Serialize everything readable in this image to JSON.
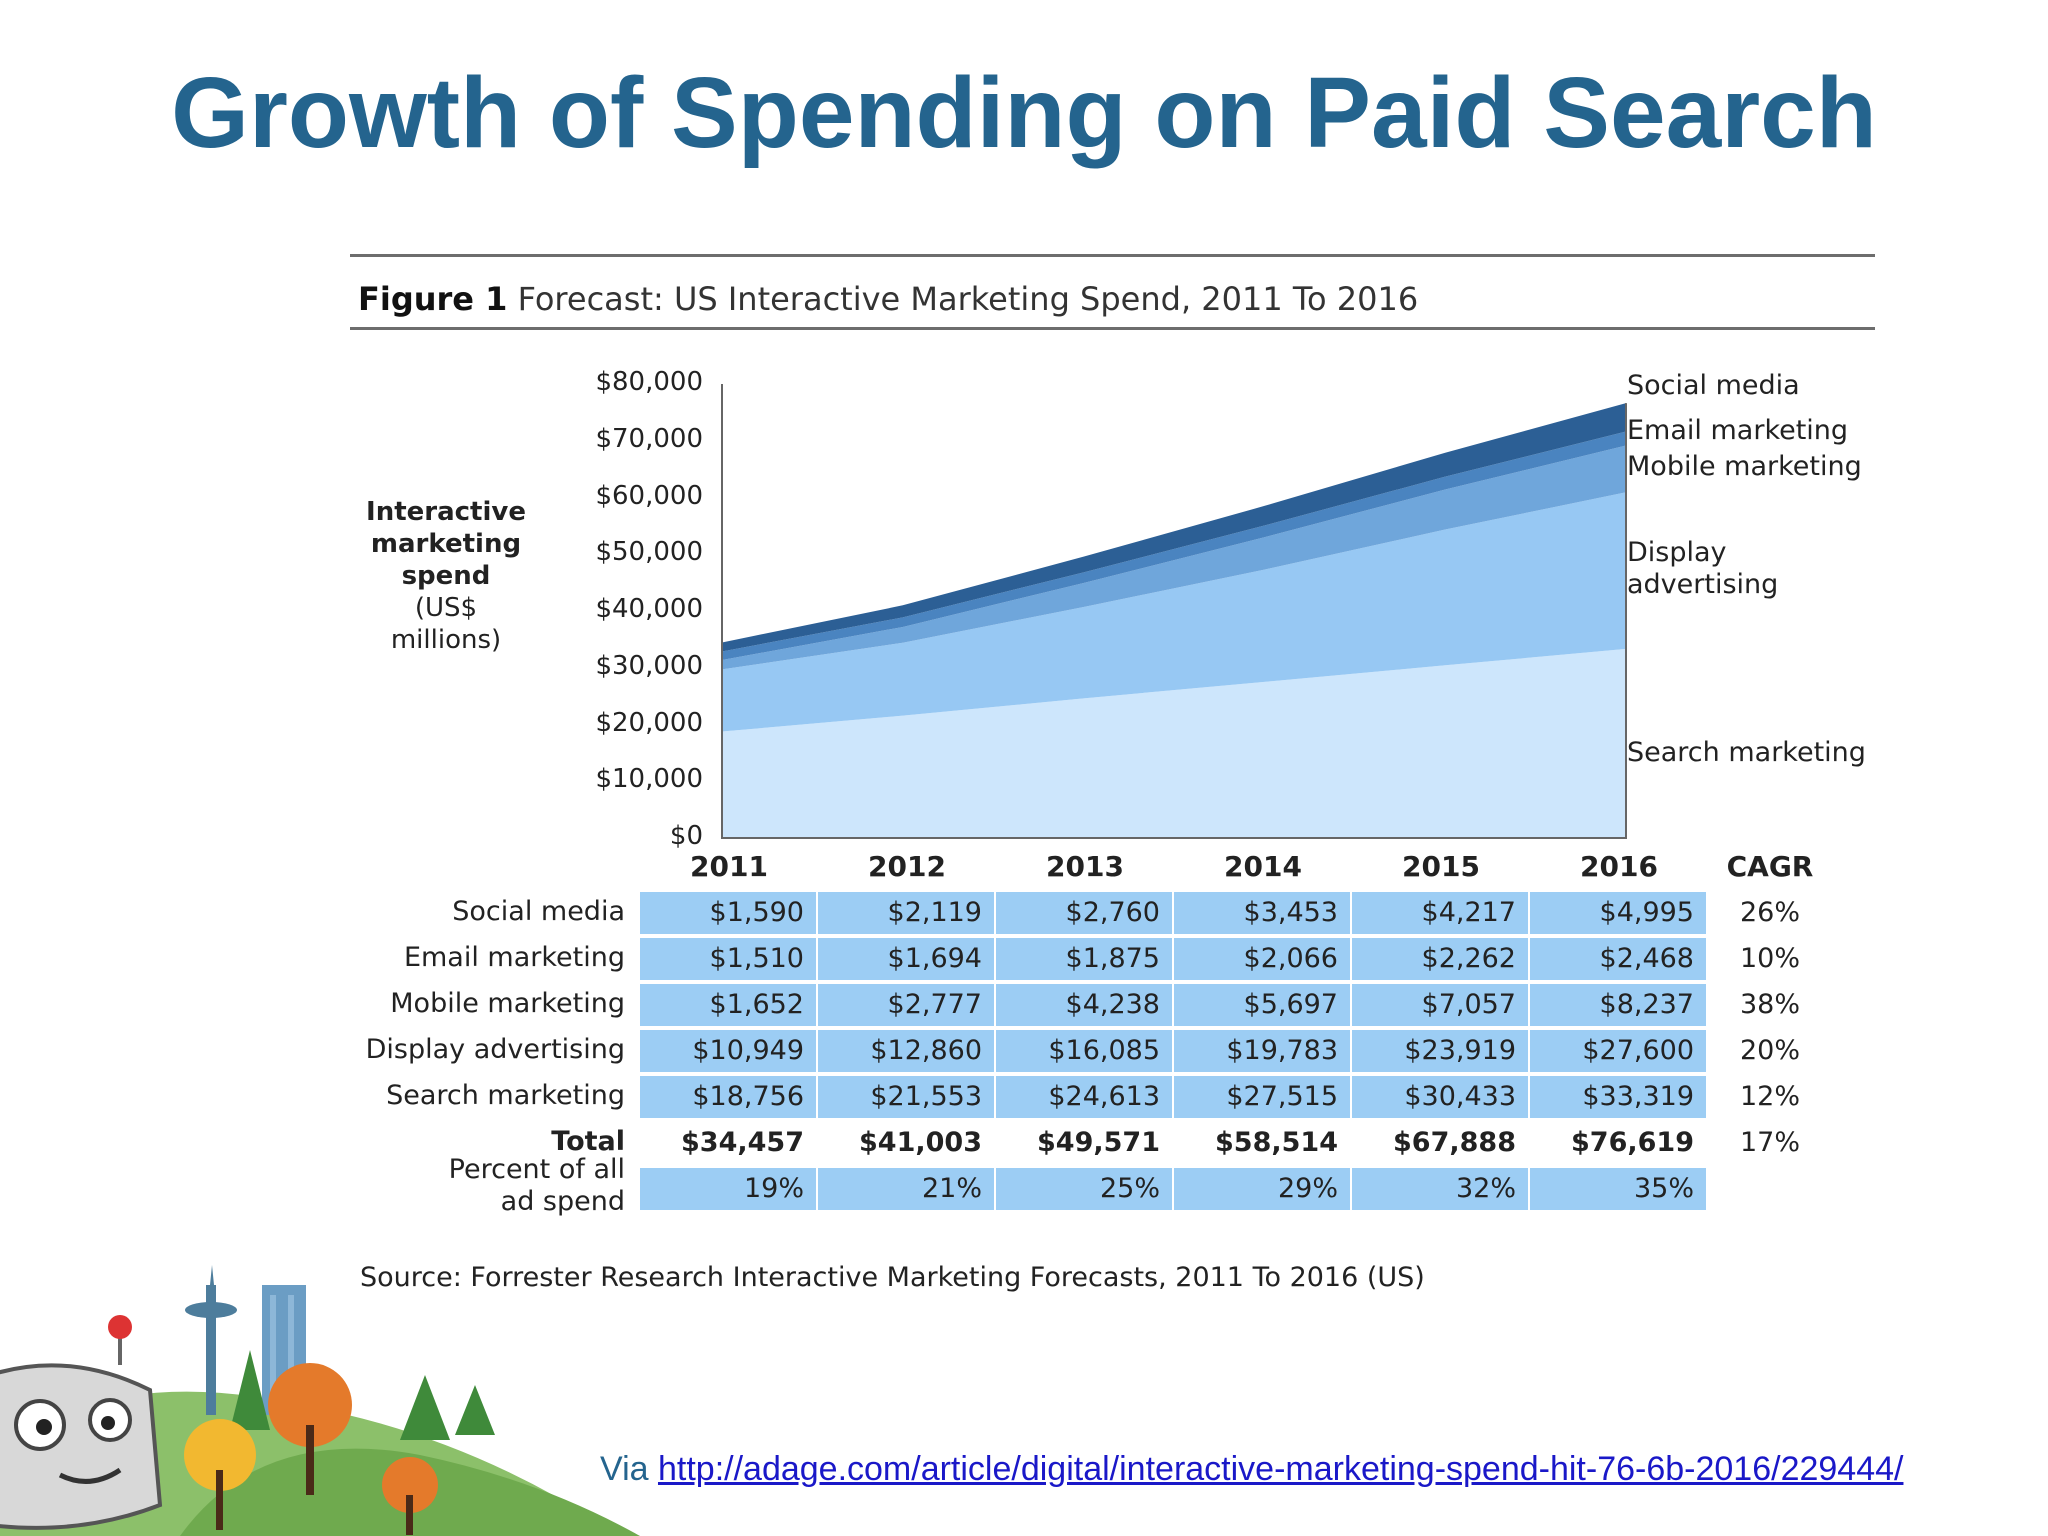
{
  "slide": {
    "title": "Growth of Spending on Paid Search",
    "via_label": "Via",
    "via_link": "http://adage.com/article/digital/interactive-marketing-spend-hit-76-6b-2016/229444/"
  },
  "figure": {
    "label": "Figure 1",
    "title": "Forecast: US Interactive Marketing Spend, 2011 To 2016",
    "source": "Source: Forrester Research Interactive Marketing Forecasts, 2011 To 2016 (US)",
    "cagr_header": "CAGR"
  },
  "colors": {
    "title": "#24648e",
    "search_marketing": "#cde6fc",
    "display_advertising": "#97c8f3",
    "mobile_marketing": "#6fa6db",
    "email_marketing": "#4a84c0",
    "social_media": "#2c5f95",
    "table_cell": "#9ccdf4"
  },
  "chart_data": {
    "type": "area",
    "stacked": true,
    "title": "Forecast: US Interactive Marketing Spend, 2011 To 2016",
    "ylabel_bold": "Interactive marketing spend",
    "ylabel_unit": "(US$ millions)",
    "ylim": [
      0,
      80000
    ],
    "yticks": [
      "$80,000",
      "$70,000",
      "$60,000",
      "$50,000",
      "$40,000",
      "$30,000",
      "$20,000",
      "$10,000",
      "$0"
    ],
    "x": [
      "2011",
      "2012",
      "2013",
      "2014",
      "2015",
      "2016"
    ],
    "series": [
      {
        "name": "Search marketing",
        "values": [
          18756,
          21553,
          24613,
          27515,
          30433,
          33319
        ],
        "cagr": "12%"
      },
      {
        "name": "Display advertising",
        "values": [
          10949,
          12860,
          16085,
          19783,
          23919,
          27600
        ],
        "cagr": "20%"
      },
      {
        "name": "Mobile marketing",
        "values": [
          1652,
          2777,
          4238,
          5697,
          7057,
          8237
        ],
        "cagr": "38%"
      },
      {
        "name": "Email marketing",
        "values": [
          1510,
          1694,
          1875,
          2066,
          2262,
          2468
        ],
        "cagr": "10%"
      },
      {
        "name": "Social media",
        "values": [
          1590,
          2119,
          2760,
          3453,
          4217,
          4995
        ],
        "cagr": "26%"
      }
    ],
    "series_labels": {
      "social": "Social media",
      "email": "Email marketing",
      "mobile": "Mobile marketing",
      "display_1": "Display",
      "display_2": "advertising",
      "search": "Search marketing"
    },
    "table": {
      "rows": [
        {
          "label": "Social media",
          "cells": [
            "$1,590",
            "$2,119",
            "$2,760",
            "$3,453",
            "$4,217",
            "$4,995"
          ],
          "cagr": "26%"
        },
        {
          "label": "Email marketing",
          "cells": [
            "$1,510",
            "$1,694",
            "$1,875",
            "$2,066",
            "$2,262",
            "$2,468"
          ],
          "cagr": "10%"
        },
        {
          "label": "Mobile marketing",
          "cells": [
            "$1,652",
            "$2,777",
            "$4,238",
            "$5,697",
            "$7,057",
            "$8,237"
          ],
          "cagr": "38%"
        },
        {
          "label": "Display advertising",
          "cells": [
            "$10,949",
            "$12,860",
            "$16,085",
            "$19,783",
            "$23,919",
            "$27,600"
          ],
          "cagr": "20%"
        },
        {
          "label": "Search marketing",
          "cells": [
            "$18,756",
            "$21,553",
            "$24,613",
            "$27,515",
            "$30,433",
            "$33,319"
          ],
          "cagr": "12%"
        }
      ],
      "total": {
        "label": "Total",
        "cells": [
          "$34,457",
          "$41,003",
          "$49,571",
          "$58,514",
          "$67,888",
          "$76,619"
        ],
        "cagr": "17%"
      },
      "percent": {
        "label_1": "Percent of all",
        "label_2": "ad spend",
        "cells": [
          "19%",
          "21%",
          "25%",
          "29%",
          "32%",
          "35%"
        ]
      }
    }
  }
}
